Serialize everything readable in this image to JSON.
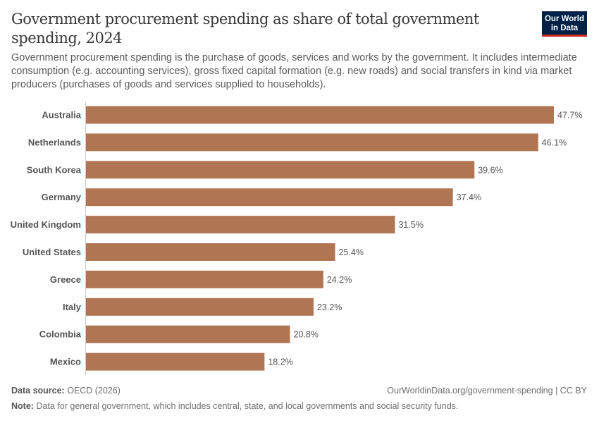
{
  "header": {
    "title": "Government procurement spending as share of total government spending, 2024",
    "subtitle": "Government procurement spending is the purchase of goods, services and works by the government. It includes intermediate consumption (e.g. accounting services), gross fixed capital formation (e.g. new roads) and social transfers in kind via market producers (purchases of goods and services supplied to households).",
    "logo": "Our World in Data"
  },
  "chart_data": {
    "type": "bar",
    "orientation": "horizontal",
    "categories": [
      "Australia",
      "Netherlands",
      "South Korea",
      "Germany",
      "United Kingdom",
      "United States",
      "Greece",
      "Italy",
      "Colombia",
      "Mexico"
    ],
    "values": [
      47.7,
      46.1,
      39.6,
      37.4,
      31.5,
      25.4,
      24.2,
      23.2,
      20.8,
      18.2
    ],
    "value_suffix": "%",
    "bar_color": "#b07654",
    "xlim": [
      0,
      47.7
    ]
  },
  "footer": {
    "source_label": "Data source:",
    "source": "OECD (2026)",
    "url": "OurWorldinData.org/government-spending | CC BY",
    "note_label": "Note:",
    "note": "Data for general government, which includes central, state, and local governments and social security funds."
  }
}
